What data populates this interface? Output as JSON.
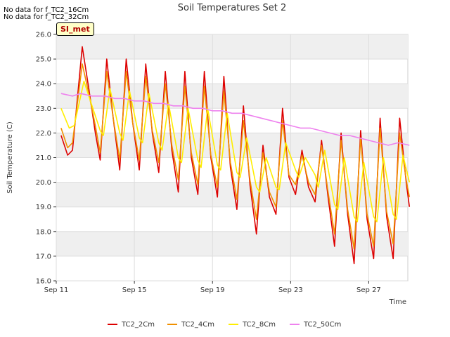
{
  "notes": [
    "No data for f_TC2_16Cm",
    "No data for f_TC2_32Cm"
  ],
  "badge": "SI_met",
  "chart_data": {
    "type": "line",
    "title": "Soil Temperatures Set 2",
    "xlabel": "Time",
    "ylabel": "Soil Temperature (C)",
    "xlim": [
      "2023-09-11",
      "2023-09-29"
    ],
    "ylim": [
      16.0,
      26.0
    ],
    "y_ticks": [
      "16.0",
      "17.0",
      "18.0",
      "19.0",
      "20.0",
      "21.0",
      "22.0",
      "23.0",
      "24.0",
      "25.0",
      "26.0"
    ],
    "x_ticks": [
      {
        "date": "2023-09-11",
        "label": "Sep 11"
      },
      {
        "date": "2023-09-15",
        "label": "Sep 15"
      },
      {
        "date": "2023-09-19",
        "label": "Sep 19"
      },
      {
        "date": "2023-09-23",
        "label": "Sep 23"
      },
      {
        "date": "2023-09-27",
        "label": "Sep 27"
      }
    ],
    "grid": true,
    "legend": "bottom",
    "series": [
      {
        "name": "TC2_2Cm",
        "color": "#dd0000",
        "points": [
          [
            "2023-09-11 06:00",
            21.9
          ],
          [
            "2023-09-11 14:00",
            21.1
          ],
          [
            "2023-09-11 20:00",
            21.3
          ],
          [
            "2023-09-12 08:00",
            25.5
          ],
          [
            "2023-09-12 16:00",
            23.8
          ],
          [
            "2023-09-13 00:00",
            22.0
          ],
          [
            "2023-09-13 06:00",
            20.9
          ],
          [
            "2023-09-13 14:00",
            25.0
          ],
          [
            "2023-09-13 22:00",
            22.6
          ],
          [
            "2023-09-14 06:00",
            20.5
          ],
          [
            "2023-09-14 14:00",
            25.0
          ],
          [
            "2023-09-14 22:00",
            22.4
          ],
          [
            "2023-09-15 06:00",
            20.5
          ],
          [
            "2023-09-15 14:00",
            24.8
          ],
          [
            "2023-09-15 22:00",
            22.0
          ],
          [
            "2023-09-16 06:00",
            20.4
          ],
          [
            "2023-09-16 14:00",
            24.5
          ],
          [
            "2023-09-16 22:00",
            21.3
          ],
          [
            "2023-09-17 06:00",
            19.6
          ],
          [
            "2023-09-17 14:00",
            24.5
          ],
          [
            "2023-09-17 22:00",
            21.0
          ],
          [
            "2023-09-18 06:00",
            19.5
          ],
          [
            "2023-09-18 14:00",
            24.5
          ],
          [
            "2023-09-18 22:00",
            21.0
          ],
          [
            "2023-09-19 06:00",
            19.4
          ],
          [
            "2023-09-19 14:00",
            24.3
          ],
          [
            "2023-09-19 22:00",
            20.6
          ],
          [
            "2023-09-20 06:00",
            18.9
          ],
          [
            "2023-09-20 14:00",
            23.1
          ],
          [
            "2023-09-20 22:00",
            19.9
          ],
          [
            "2023-09-21 06:00",
            17.9
          ],
          [
            "2023-09-21 14:00",
            21.5
          ],
          [
            "2023-09-21 22:00",
            19.4
          ],
          [
            "2023-09-22 06:00",
            18.7
          ],
          [
            "2023-09-22 14:00",
            23.0
          ],
          [
            "2023-09-22 22:00",
            20.2
          ],
          [
            "2023-09-23 06:00",
            19.5
          ],
          [
            "2023-09-23 14:00",
            21.3
          ],
          [
            "2023-09-23 22:00",
            19.8
          ],
          [
            "2023-09-24 06:00",
            19.2
          ],
          [
            "2023-09-24 14:00",
            21.7
          ],
          [
            "2023-09-24 22:00",
            19.4
          ],
          [
            "2023-09-25 06:00",
            17.4
          ],
          [
            "2023-09-25 14:00",
            22.0
          ],
          [
            "2023-09-25 22:00",
            18.7
          ],
          [
            "2023-09-26 06:00",
            16.7
          ],
          [
            "2023-09-26 14:00",
            22.1
          ],
          [
            "2023-09-26 22:00",
            18.5
          ],
          [
            "2023-09-27 06:00",
            16.9
          ],
          [
            "2023-09-27 14:00",
            22.6
          ],
          [
            "2023-09-27 22:00",
            18.6
          ],
          [
            "2023-09-28 06:00",
            16.9
          ],
          [
            "2023-09-28 14:00",
            22.6
          ],
          [
            "2023-09-28 22:00",
            20.0
          ],
          [
            "2023-09-29 02:00",
            19.0
          ]
        ]
      },
      {
        "name": "TC2_4Cm",
        "color": "#f09000",
        "points": [
          [
            "2023-09-11 06:00",
            22.2
          ],
          [
            "2023-09-11 14:00",
            21.4
          ],
          [
            "2023-09-11 20:00",
            21.6
          ],
          [
            "2023-09-12 08:00",
            24.8
          ],
          [
            "2023-09-12 16:00",
            23.6
          ],
          [
            "2023-09-13 00:00",
            22.3
          ],
          [
            "2023-09-13 06:00",
            21.2
          ],
          [
            "2023-09-13 14:00",
            24.5
          ],
          [
            "2023-09-13 22:00",
            22.6
          ],
          [
            "2023-09-14 06:00",
            20.9
          ],
          [
            "2023-09-14 14:00",
            24.5
          ],
          [
            "2023-09-14 22:00",
            22.4
          ],
          [
            "2023-09-15 06:00",
            20.9
          ],
          [
            "2023-09-15 14:00",
            24.3
          ],
          [
            "2023-09-15 22:00",
            22.1
          ],
          [
            "2023-09-16 06:00",
            20.8
          ],
          [
            "2023-09-16 14:00",
            24.0
          ],
          [
            "2023-09-16 22:00",
            21.5
          ],
          [
            "2023-09-17 06:00",
            20.1
          ],
          [
            "2023-09-17 14:00",
            23.9
          ],
          [
            "2023-09-17 22:00",
            21.2
          ],
          [
            "2023-09-18 06:00",
            19.9
          ],
          [
            "2023-09-18 14:00",
            23.9
          ],
          [
            "2023-09-18 22:00",
            21.1
          ],
          [
            "2023-09-19 06:00",
            19.8
          ],
          [
            "2023-09-19 14:00",
            23.7
          ],
          [
            "2023-09-19 22:00",
            20.8
          ],
          [
            "2023-09-20 06:00",
            19.3
          ],
          [
            "2023-09-20 14:00",
            22.5
          ],
          [
            "2023-09-20 22:00",
            20.1
          ],
          [
            "2023-09-21 06:00",
            18.5
          ],
          [
            "2023-09-21 14:00",
            21.2
          ],
          [
            "2023-09-21 22:00",
            19.6
          ],
          [
            "2023-09-22 06:00",
            19.0
          ],
          [
            "2023-09-22 14:00",
            22.5
          ],
          [
            "2023-09-22 22:00",
            20.3
          ],
          [
            "2023-09-23 06:00",
            19.9
          ],
          [
            "2023-09-23 14:00",
            21.1
          ],
          [
            "2023-09-23 22:00",
            20.0
          ],
          [
            "2023-09-24 06:00",
            19.5
          ],
          [
            "2023-09-24 14:00",
            21.5
          ],
          [
            "2023-09-24 22:00",
            19.6
          ],
          [
            "2023-09-25 06:00",
            17.9
          ],
          [
            "2023-09-25 14:00",
            21.7
          ],
          [
            "2023-09-25 22:00",
            18.9
          ],
          [
            "2023-09-26 06:00",
            17.3
          ],
          [
            "2023-09-26 14:00",
            21.8
          ],
          [
            "2023-09-26 22:00",
            18.7
          ],
          [
            "2023-09-27 06:00",
            17.4
          ],
          [
            "2023-09-27 14:00",
            22.2
          ],
          [
            "2023-09-27 22:00",
            18.8
          ],
          [
            "2023-09-28 06:00",
            17.5
          ],
          [
            "2023-09-28 14:00",
            22.0
          ],
          [
            "2023-09-28 22:00",
            20.1
          ],
          [
            "2023-09-29 02:00",
            19.4
          ]
        ]
      },
      {
        "name": "TC2_8Cm",
        "color": "#ffee00",
        "points": [
          [
            "2023-09-11 06:00",
            23.0
          ],
          [
            "2023-09-11 16:00",
            22.2
          ],
          [
            "2023-09-11 22:00",
            22.3
          ],
          [
            "2023-09-12 10:00",
            24.1
          ],
          [
            "2023-09-12 20:00",
            23.1
          ],
          [
            "2023-09-13 06:00",
            22.1
          ],
          [
            "2023-09-13 10:00",
            21.9
          ],
          [
            "2023-09-13 18:00",
            23.8
          ],
          [
            "2023-09-14 06:00",
            22.0
          ],
          [
            "2023-09-14 10:00",
            21.7
          ],
          [
            "2023-09-14 18:00",
            23.7
          ],
          [
            "2023-09-15 06:00",
            21.8
          ],
          [
            "2023-09-15 10:00",
            21.6
          ],
          [
            "2023-09-15 18:00",
            23.6
          ],
          [
            "2023-09-16 06:00",
            21.6
          ],
          [
            "2023-09-16 10:00",
            21.3
          ],
          [
            "2023-09-16 18:00",
            23.2
          ],
          [
            "2023-09-17 06:00",
            21.0
          ],
          [
            "2023-09-17 10:00",
            20.8
          ],
          [
            "2023-09-17 18:00",
            23.0
          ],
          [
            "2023-09-18 06:00",
            20.9
          ],
          [
            "2023-09-18 10:00",
            20.6
          ],
          [
            "2023-09-18 18:00",
            23.0
          ],
          [
            "2023-09-19 06:00",
            20.7
          ],
          [
            "2023-09-19 10:00",
            20.5
          ],
          [
            "2023-09-19 18:00",
            22.8
          ],
          [
            "2023-09-20 06:00",
            20.4
          ],
          [
            "2023-09-20 10:00",
            20.2
          ],
          [
            "2023-09-20 18:00",
            21.8
          ],
          [
            "2023-09-21 06:00",
            19.8
          ],
          [
            "2023-09-21 10:00",
            19.6
          ],
          [
            "2023-09-21 18:00",
            21.0
          ],
          [
            "2023-09-22 06:00",
            19.8
          ],
          [
            "2023-09-22 10:00",
            19.7
          ],
          [
            "2023-09-22 18:00",
            21.6
          ],
          [
            "2023-09-23 06:00",
            20.5
          ],
          [
            "2023-09-23 10:00",
            20.2
          ],
          [
            "2023-09-23 18:00",
            21.0
          ],
          [
            "2023-09-24 06:00",
            20.3
          ],
          [
            "2023-09-24 10:00",
            19.8
          ],
          [
            "2023-09-24 18:00",
            21.3
          ],
          [
            "2023-09-25 06:00",
            19.1
          ],
          [
            "2023-09-25 10:00",
            18.9
          ],
          [
            "2023-09-25 18:00",
            21.0
          ],
          [
            "2023-09-26 06:00",
            18.6
          ],
          [
            "2023-09-26 10:00",
            18.4
          ],
          [
            "2023-09-26 18:00",
            20.8
          ],
          [
            "2023-09-27 06:00",
            18.6
          ],
          [
            "2023-09-27 10:00",
            18.4
          ],
          [
            "2023-09-27 18:00",
            21.0
          ],
          [
            "2023-09-28 06:00",
            18.7
          ],
          [
            "2023-09-28 10:00",
            18.5
          ],
          [
            "2023-09-28 18:00",
            21.1
          ],
          [
            "2023-09-29 02:00",
            20.0
          ]
        ]
      },
      {
        "name": "TC2_50Cm",
        "color": "#ee82ee",
        "points": [
          [
            "2023-09-11 06:00",
            23.6
          ],
          [
            "2023-09-11 20:00",
            23.5
          ],
          [
            "2023-09-12 06:00",
            23.6
          ],
          [
            "2023-09-12 20:00",
            23.5
          ],
          [
            "2023-09-13 12:00",
            23.5
          ],
          [
            "2023-09-14 00:00",
            23.4
          ],
          [
            "2023-09-14 12:00",
            23.4
          ],
          [
            "2023-09-15 00:00",
            23.3
          ],
          [
            "2023-09-15 12:00",
            23.3
          ],
          [
            "2023-09-16 00:00",
            23.2
          ],
          [
            "2023-09-16 12:00",
            23.2
          ],
          [
            "2023-09-17 00:00",
            23.1
          ],
          [
            "2023-09-17 12:00",
            23.1
          ],
          [
            "2023-09-18 00:00",
            23.0
          ],
          [
            "2023-09-18 12:00",
            23.0
          ],
          [
            "2023-09-19 00:00",
            22.9
          ],
          [
            "2023-09-19 12:00",
            22.9
          ],
          [
            "2023-09-20 00:00",
            22.8
          ],
          [
            "2023-09-20 12:00",
            22.8
          ],
          [
            "2023-09-21 00:00",
            22.7
          ],
          [
            "2023-09-21 12:00",
            22.6
          ],
          [
            "2023-09-22 00:00",
            22.5
          ],
          [
            "2023-09-22 12:00",
            22.4
          ],
          [
            "2023-09-23 00:00",
            22.3
          ],
          [
            "2023-09-23 12:00",
            22.2
          ],
          [
            "2023-09-24 00:00",
            22.2
          ],
          [
            "2023-09-24 12:00",
            22.1
          ],
          [
            "2023-09-25 00:00",
            22.0
          ],
          [
            "2023-09-25 12:00",
            21.9
          ],
          [
            "2023-09-26 00:00",
            21.9
          ],
          [
            "2023-09-26 12:00",
            21.8
          ],
          [
            "2023-09-27 00:00",
            21.7
          ],
          [
            "2023-09-27 12:00",
            21.6
          ],
          [
            "2023-09-28 00:00",
            21.5
          ],
          [
            "2023-09-28 12:00",
            21.6
          ],
          [
            "2023-09-29 02:00",
            21.5
          ]
        ]
      }
    ]
  }
}
